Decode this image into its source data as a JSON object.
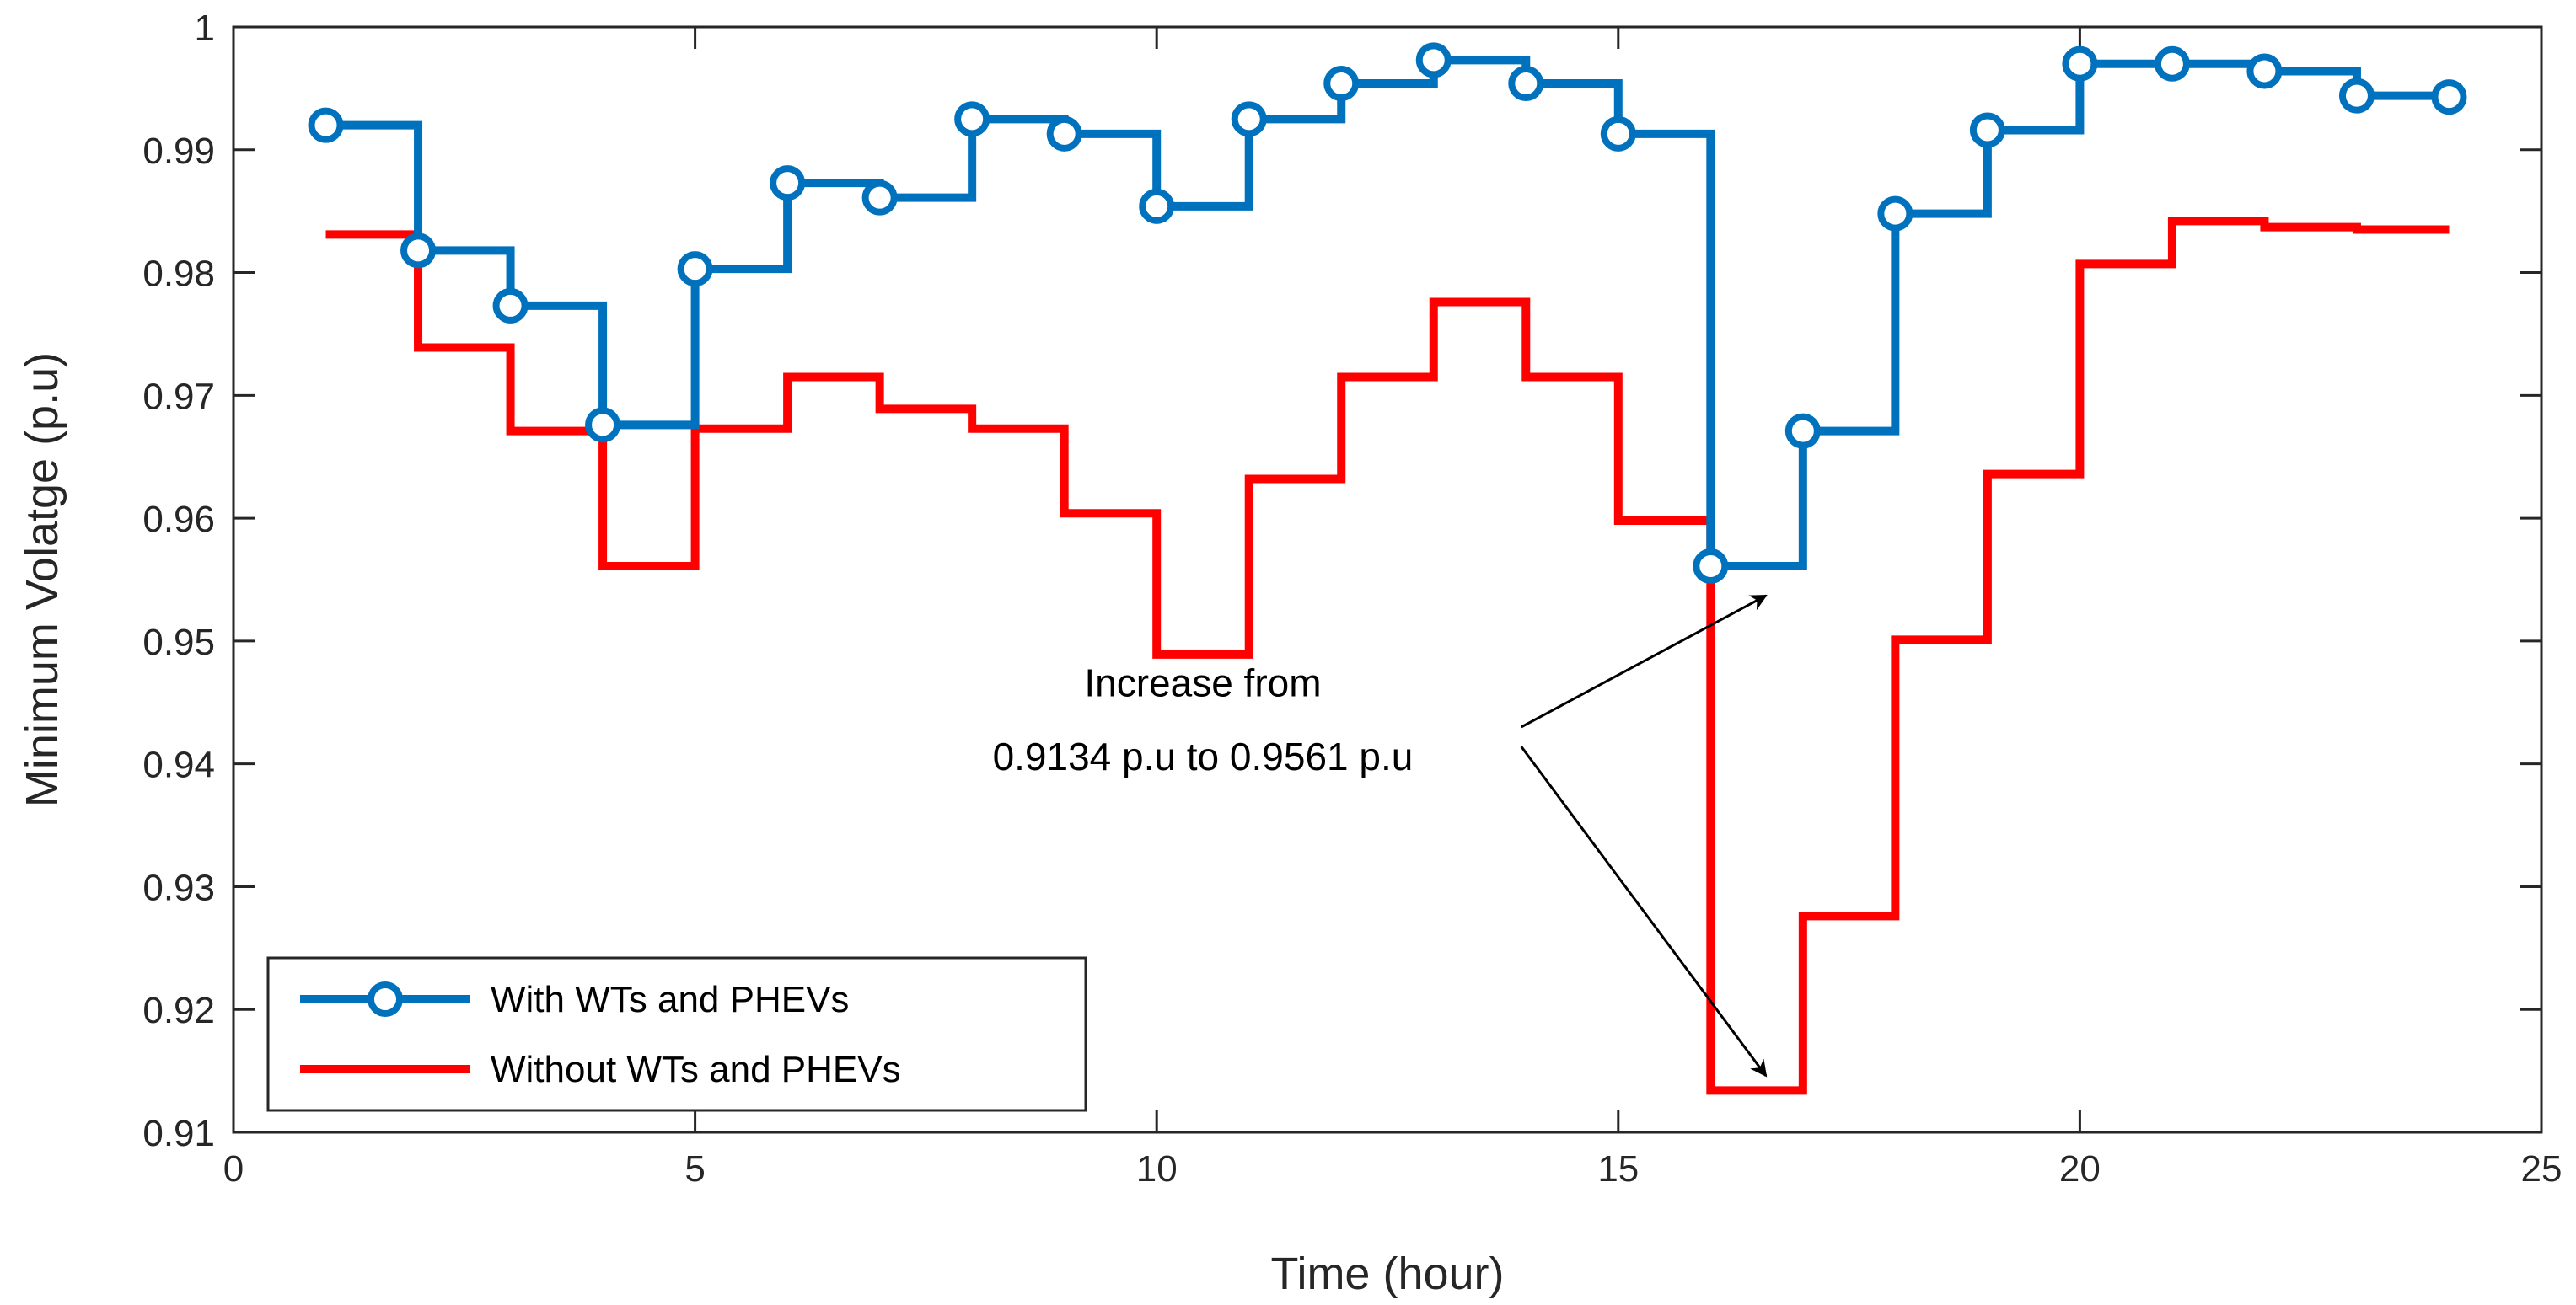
{
  "chart_data": {
    "type": "line",
    "step": true,
    "xlabel": "Time (hour)",
    "ylabel": "Minimum Volatge (p.u)",
    "xlim": [
      0,
      25
    ],
    "ylim": [
      0.91,
      1.0
    ],
    "xticks": [
      0,
      5,
      10,
      15,
      20,
      25
    ],
    "yticks": [
      0.91,
      0.92,
      0.93,
      0.94,
      0.95,
      0.96,
      0.97,
      0.98,
      0.99,
      1.0
    ],
    "xtick_labels": [
      "0",
      "5",
      "10",
      "15",
      "20",
      "25"
    ],
    "ytick_labels": [
      "0.91",
      "0.92",
      "0.93",
      "0.94",
      "0.95",
      "0.96",
      "0.97",
      "0.98",
      "0.99",
      "1"
    ],
    "legend_position": "bottom-left",
    "series": [
      {
        "name": "With WTs and PHEVs",
        "color": "#0072BD",
        "marker": "circle",
        "x": [
          1,
          2,
          3,
          4,
          5,
          6,
          7,
          8,
          9,
          10,
          11,
          12,
          13,
          14,
          15,
          16,
          17,
          18,
          19,
          20,
          21,
          22,
          23,
          24
        ],
        "values": [
          0.992,
          0.9818,
          0.9773,
          0.9676,
          0.9803,
          0.9873,
          0.9861,
          0.9925,
          0.9913,
          0.9854,
          0.9925,
          0.9954,
          0.9973,
          0.9954,
          0.9913,
          0.9561,
          0.9671,
          0.9848,
          0.9916,
          0.997,
          0.997,
          0.9964,
          0.9944,
          0.9943
        ]
      },
      {
        "name": "Without WTs and PHEVs",
        "color": "#FF0000",
        "marker": "none",
        "x": [
          1,
          2,
          3,
          4,
          5,
          6,
          7,
          8,
          9,
          10,
          11,
          12,
          13,
          14,
          15,
          16,
          17,
          18,
          19,
          20,
          21,
          22,
          23,
          24
        ],
        "values": [
          0.9831,
          0.9739,
          0.9671,
          0.9561,
          0.9673,
          0.9715,
          0.9689,
          0.9673,
          0.9604,
          0.9489,
          0.9632,
          0.9715,
          0.9776,
          0.9715,
          0.9598,
          0.9134,
          0.9276,
          0.9501,
          0.9636,
          0.9807,
          0.9842,
          0.9837,
          0.9835,
          0.9835
        ]
      }
    ],
    "annotations": [
      {
        "text_lines": [
          "Increase from",
          "0.9134 p.u to 0.9561 p.u"
        ],
        "anchor": [
          13.2,
          0.9414
        ],
        "label_x": 10.5,
        "label_y_lines": [
          0.9455,
          0.9395
        ],
        "arrows": [
          {
            "from": [
              13.95,
              0.943
            ],
            "to": [
              16.6,
              0.9537
            ]
          },
          {
            "from": [
              13.95,
              0.9414
            ],
            "to": [
              16.6,
              0.9146
            ]
          }
        ]
      }
    ]
  }
}
